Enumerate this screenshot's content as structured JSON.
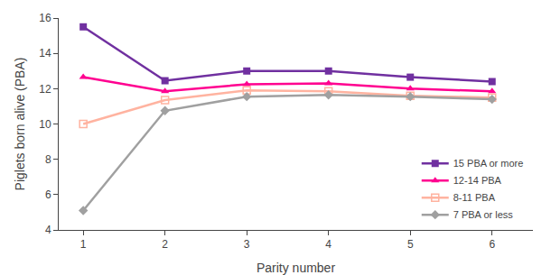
{
  "chart_data": {
    "type": "line",
    "x": [
      1,
      2,
      3,
      4,
      5,
      6
    ],
    "series": [
      {
        "name": "15 PBA or more",
        "color": "#7030A0",
        "marker": "square",
        "values": [
          15.5,
          12.45,
          13.0,
          13.0,
          12.65,
          12.4
        ]
      },
      {
        "name": "12-14 PBA",
        "color": "#FF0090",
        "marker": "triangle-up",
        "values": [
          12.65,
          11.85,
          12.25,
          12.3,
          12.0,
          11.85
        ]
      },
      {
        "name": "8-11 PBA",
        "color": "#FFB3A0",
        "marker": "square-open",
        "values": [
          10.0,
          11.35,
          11.9,
          11.85,
          11.6,
          11.5
        ]
      },
      {
        "name": "7 PBA or less",
        "color": "#A0A0A0",
        "marker": "diamond",
        "values": [
          5.1,
          10.75,
          11.55,
          11.65,
          11.55,
          11.4
        ]
      }
    ],
    "xlabel": "Parity number",
    "ylabel": "Piglets born alive (PBA)",
    "xlim": [
      0.7,
      6.5
    ],
    "ylim": [
      4,
      16
    ],
    "xticks": [
      1,
      2,
      3,
      4,
      5,
      6
    ],
    "yticks": [
      4,
      6,
      8,
      10,
      12,
      14,
      16
    ],
    "grid": false,
    "legend": "lower right"
  }
}
